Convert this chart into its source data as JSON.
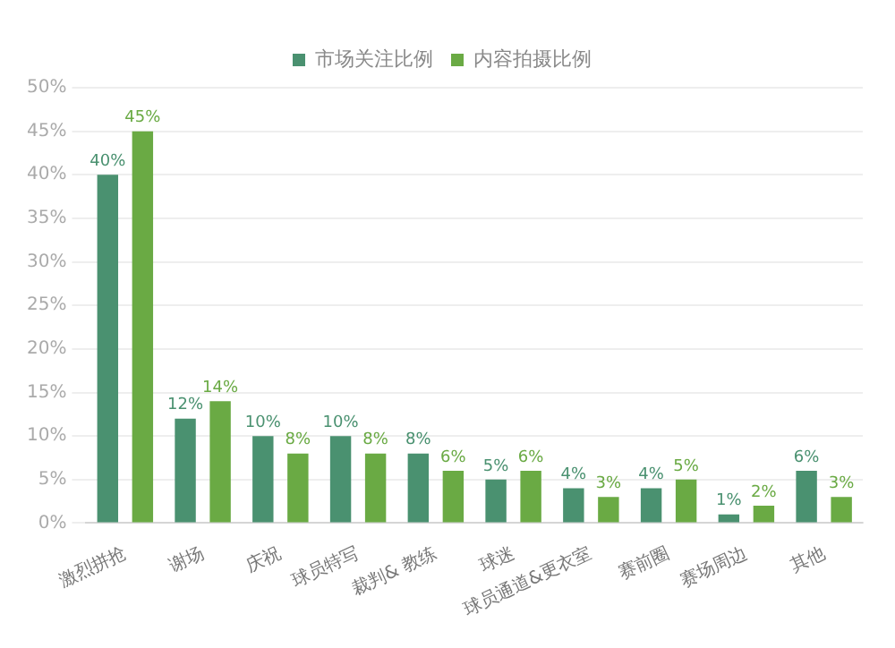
{
  "chart_data": {
    "type": "bar",
    "categories": [
      "激烈拼抢",
      "谢场",
      "庆祝",
      "球员特写",
      "裁判& 教练",
      "球迷",
      "球员通道&更衣室",
      "赛前圈",
      "赛场周边",
      "其他"
    ],
    "series": [
      {
        "name": "市场关注比例",
        "color": "#4a9170",
        "values": [
          40,
          12,
          10,
          10,
          8,
          5,
          4,
          4,
          1,
          6
        ]
      },
      {
        "name": "内容拍摄比例",
        "color": "#6aaa44",
        "values": [
          45,
          14,
          8,
          8,
          6,
          6,
          3,
          5,
          2,
          3
        ]
      }
    ],
    "ylim": [
      0,
      50
    ],
    "yticks": [
      {
        "value": 0,
        "label": "0%"
      },
      {
        "value": 5,
        "label": "5%"
      },
      {
        "value": 10,
        "label": "10%"
      },
      {
        "value": 15,
        "label": "15%"
      },
      {
        "value": 20,
        "label": "20%"
      },
      {
        "value": 25,
        "label": "25%"
      },
      {
        "value": 30,
        "label": "30%"
      },
      {
        "value": 35,
        "label": "35%"
      },
      {
        "value": 40,
        "label": "40%"
      },
      {
        "value": 45,
        "label": "45%"
      },
      {
        "value": 50,
        "label": "50%"
      }
    ],
    "value_labels": [
      [
        "40%",
        "12%",
        "10%",
        "10%",
        "8%",
        "5%",
        "4%",
        "4%",
        "1%",
        "6%"
      ],
      [
        "45%",
        "14%",
        "8%",
        "8%",
        "6%",
        "6%",
        "3%",
        "5%",
        "2%",
        "3%"
      ]
    ],
    "grid": "y",
    "legend": "top"
  }
}
